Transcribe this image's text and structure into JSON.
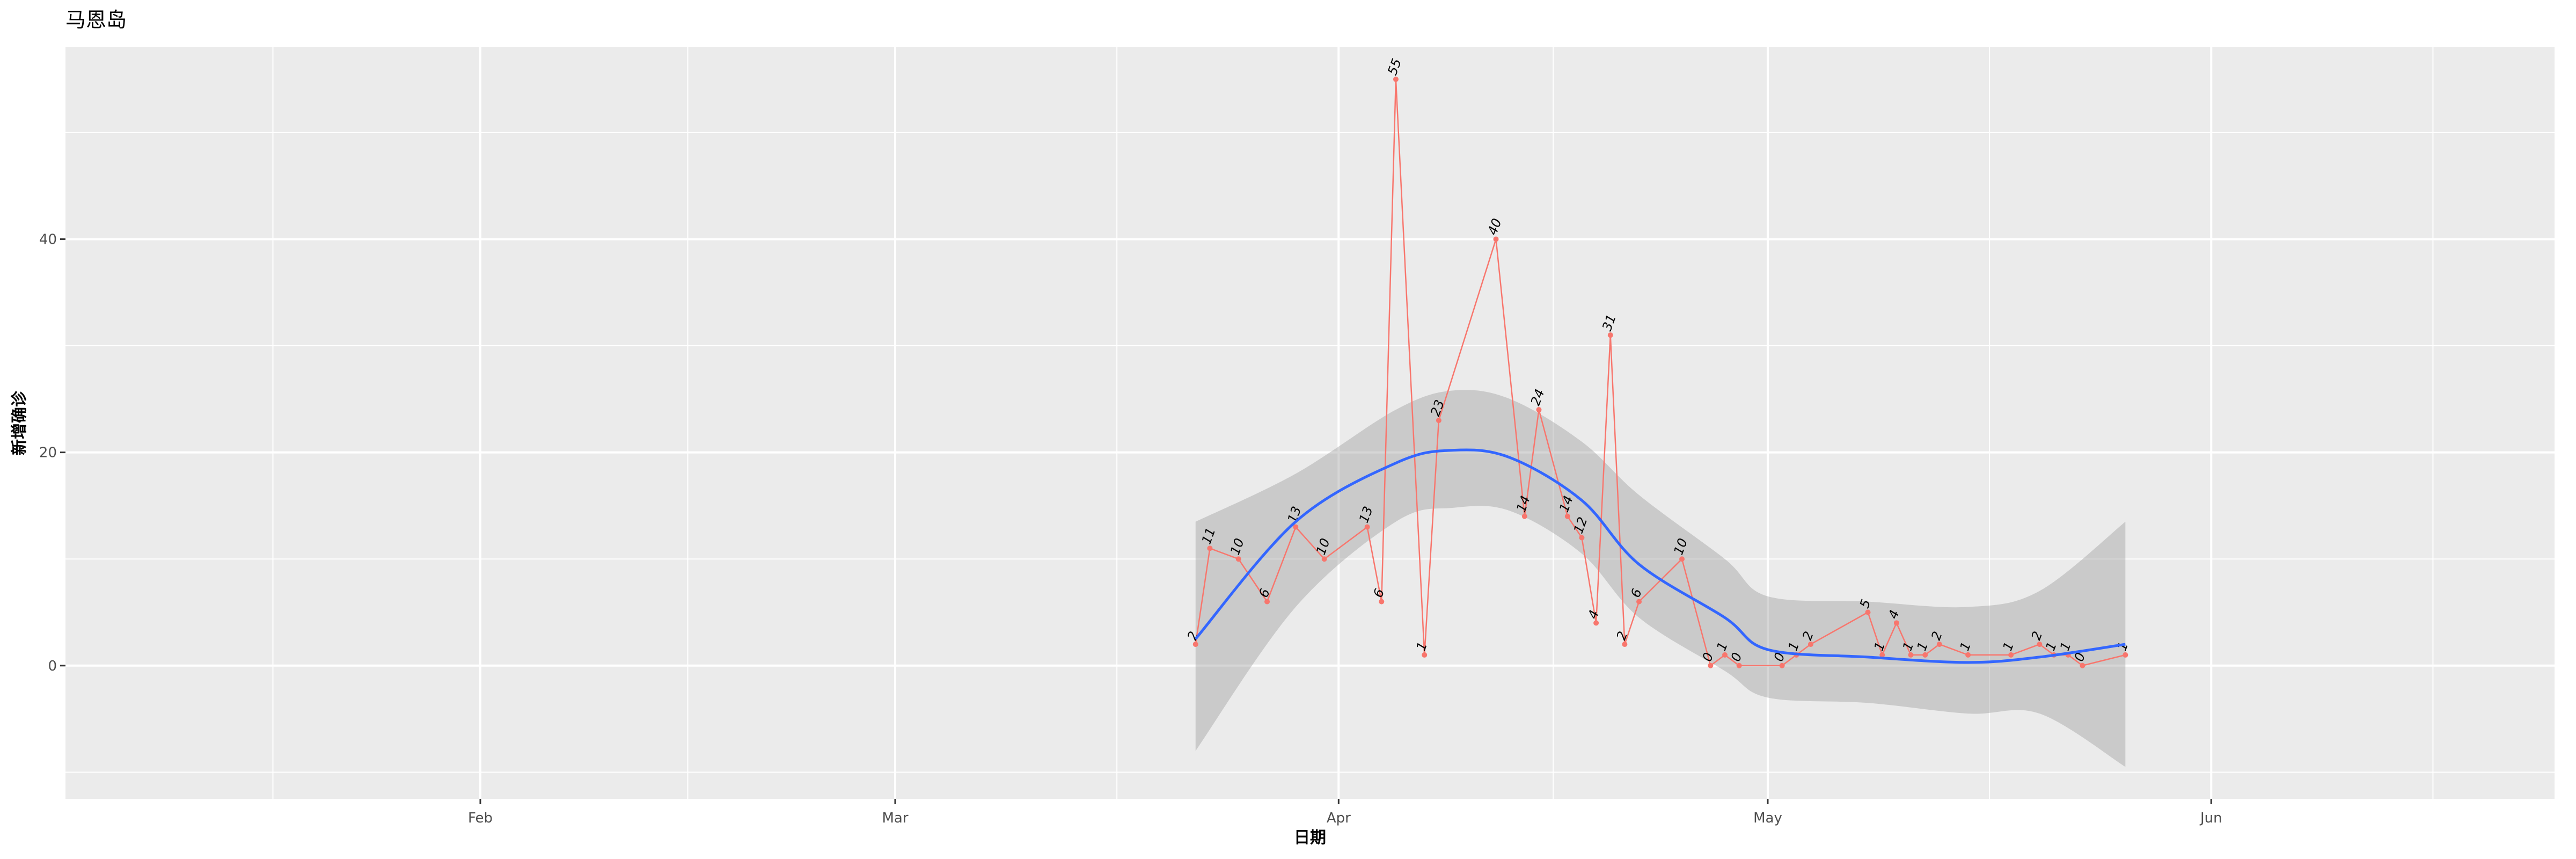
{
  "chart_data": {
    "type": "line",
    "title": "马恩岛",
    "xlabel": "日期",
    "ylabel": "新增确诊",
    "x_ticks": [
      "Feb",
      "Mar",
      "Apr",
      "May",
      "Jun"
    ],
    "x_tick_dates": [
      "2020-02-01",
      "2020-03-01",
      "2020-04-01",
      "2020-05-01",
      "2020-06-01"
    ],
    "y_ticks": [
      0,
      20,
      40
    ],
    "xlim": [
      "2020-01-03",
      "2020-06-25"
    ],
    "ylim": [
      -12.5,
      58
    ],
    "grid": true,
    "series": [
      {
        "color": "#F8766D",
        "points": [
          {
            "x": "2020-03-22",
            "y": 2
          },
          {
            "x": "2020-03-23",
            "y": 11
          },
          {
            "x": "2020-03-25",
            "y": 10
          },
          {
            "x": "2020-03-27",
            "y": 6
          },
          {
            "x": "2020-03-29",
            "y": 13
          },
          {
            "x": "2020-03-31",
            "y": 10
          },
          {
            "x": "2020-04-03",
            "y": 13
          },
          {
            "x": "2020-04-04",
            "y": 6
          },
          {
            "x": "2020-04-05",
            "y": 55
          },
          {
            "x": "2020-04-07",
            "y": 1
          },
          {
            "x": "2020-04-08",
            "y": 23
          },
          {
            "x": "2020-04-12",
            "y": 40
          },
          {
            "x": "2020-04-14",
            "y": 14
          },
          {
            "x": "2020-04-15",
            "y": 24
          },
          {
            "x": "2020-04-17",
            "y": 14
          },
          {
            "x": "2020-04-18",
            "y": 12
          },
          {
            "x": "2020-04-19",
            "y": 4
          },
          {
            "x": "2020-04-20",
            "y": 31
          },
          {
            "x": "2020-04-21",
            "y": 2
          },
          {
            "x": "2020-04-22",
            "y": 6
          },
          {
            "x": "2020-04-25",
            "y": 10
          },
          {
            "x": "2020-04-27",
            "y": 0
          },
          {
            "x": "2020-04-28",
            "y": 1
          },
          {
            "x": "2020-04-29",
            "y": 0
          },
          {
            "x": "2020-05-02",
            "y": 0
          },
          {
            "x": "2020-05-03",
            "y": 1
          },
          {
            "x": "2020-05-04",
            "y": 2
          },
          {
            "x": "2020-05-08",
            "y": 5
          },
          {
            "x": "2020-05-09",
            "y": 1
          },
          {
            "x": "2020-05-10",
            "y": 4
          },
          {
            "x": "2020-05-11",
            "y": 1
          },
          {
            "x": "2020-05-12",
            "y": 1
          },
          {
            "x": "2020-05-13",
            "y": 2
          },
          {
            "x": "2020-05-15",
            "y": 1
          },
          {
            "x": "2020-05-18",
            "y": 1
          },
          {
            "x": "2020-05-20",
            "y": 2
          },
          {
            "x": "2020-05-21",
            "y": 1
          },
          {
            "x": "2020-05-22",
            "y": 1
          },
          {
            "x": "2020-05-23",
            "y": 0
          },
          {
            "x": "2020-05-26",
            "y": 1
          }
        ]
      },
      {
        "type": "smooth",
        "color": "#3366FF",
        "ribbon_color": "#999999",
        "points": [
          {
            "x": "2020-03-22",
            "y": 2.5,
            "lo": -8,
            "hi": 13.5
          },
          {
            "x": "2020-03-29",
            "y": 13.5,
            "lo": 5.5,
            "hi": 18
          },
          {
            "x": "2020-04-05",
            "y": 19,
            "lo": 13.5,
            "hi": 24
          },
          {
            "x": "2020-04-09",
            "y": 20.2,
            "lo": 14.8,
            "hi": 25.8
          },
          {
            "x": "2020-04-13",
            "y": 19.5,
            "lo": 14.5,
            "hi": 25
          },
          {
            "x": "2020-04-18",
            "y": 15.5,
            "lo": 10.5,
            "hi": 21
          },
          {
            "x": "2020-04-22",
            "y": 9.5,
            "lo": 4.5,
            "hi": 16
          },
          {
            "x": "2020-04-28",
            "y": 4.5,
            "lo": -0.5,
            "hi": 10
          },
          {
            "x": "2020-05-01",
            "y": 1.5,
            "lo": -3,
            "hi": 6.5
          },
          {
            "x": "2020-05-08",
            "y": 0.8,
            "lo": -3.5,
            "hi": 6
          },
          {
            "x": "2020-05-15",
            "y": 0.3,
            "lo": -4.5,
            "hi": 5.5
          },
          {
            "x": "2020-05-20",
            "y": 0.8,
            "lo": -4.5,
            "hi": 7
          },
          {
            "x": "2020-05-26",
            "y": 2,
            "lo": -9.5,
            "hi": 13.5
          }
        ]
      }
    ]
  }
}
